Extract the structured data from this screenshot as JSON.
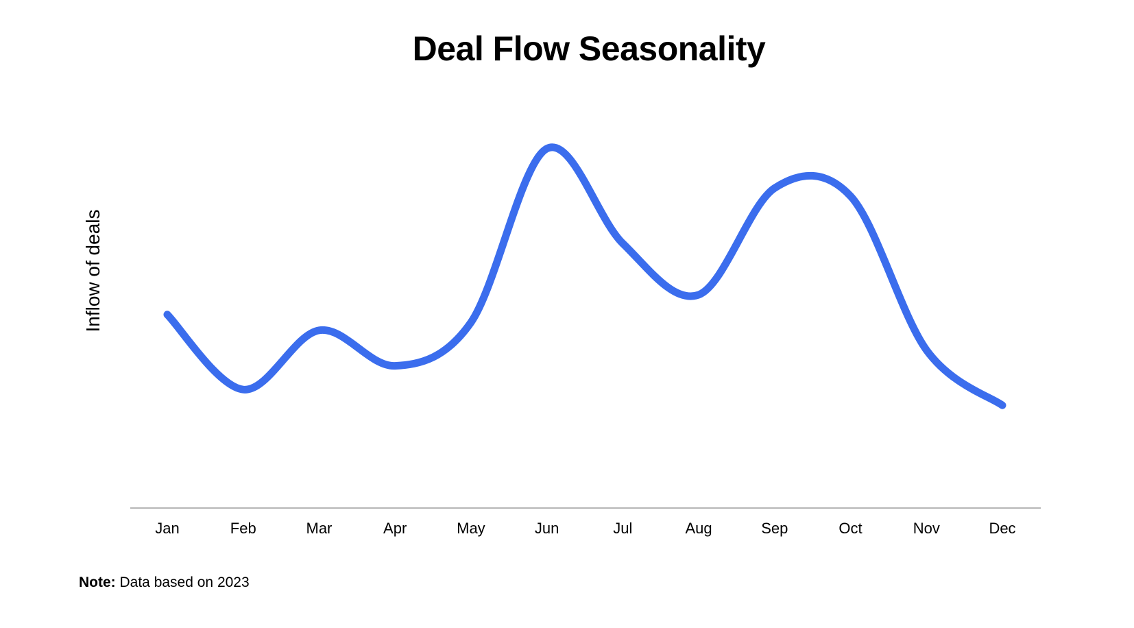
{
  "chart_data": {
    "type": "line",
    "title": "Deal Flow Seasonality",
    "xlabel": "",
    "ylabel": "Inflow of deals",
    "categories": [
      "Jan",
      "Feb",
      "Mar",
      "Apr",
      "May",
      "Jun",
      "Jul",
      "Aug",
      "Sep",
      "Oct",
      "Nov",
      "Dec"
    ],
    "series": [
      {
        "values": [
          4.9,
          3.0,
          4.5,
          3.6,
          4.7,
          9.1,
          6.7,
          5.4,
          8.1,
          7.9,
          4.0,
          2.6
        ]
      }
    ],
    "ylim": [
      0,
      10
    ],
    "y_axis_shown": false,
    "grid": false,
    "legend": "none",
    "line_color": "#3b6ded",
    "axis_color": "#9e9e9e"
  },
  "note": {
    "label": "Note:",
    "text": " Data based on 2023"
  }
}
